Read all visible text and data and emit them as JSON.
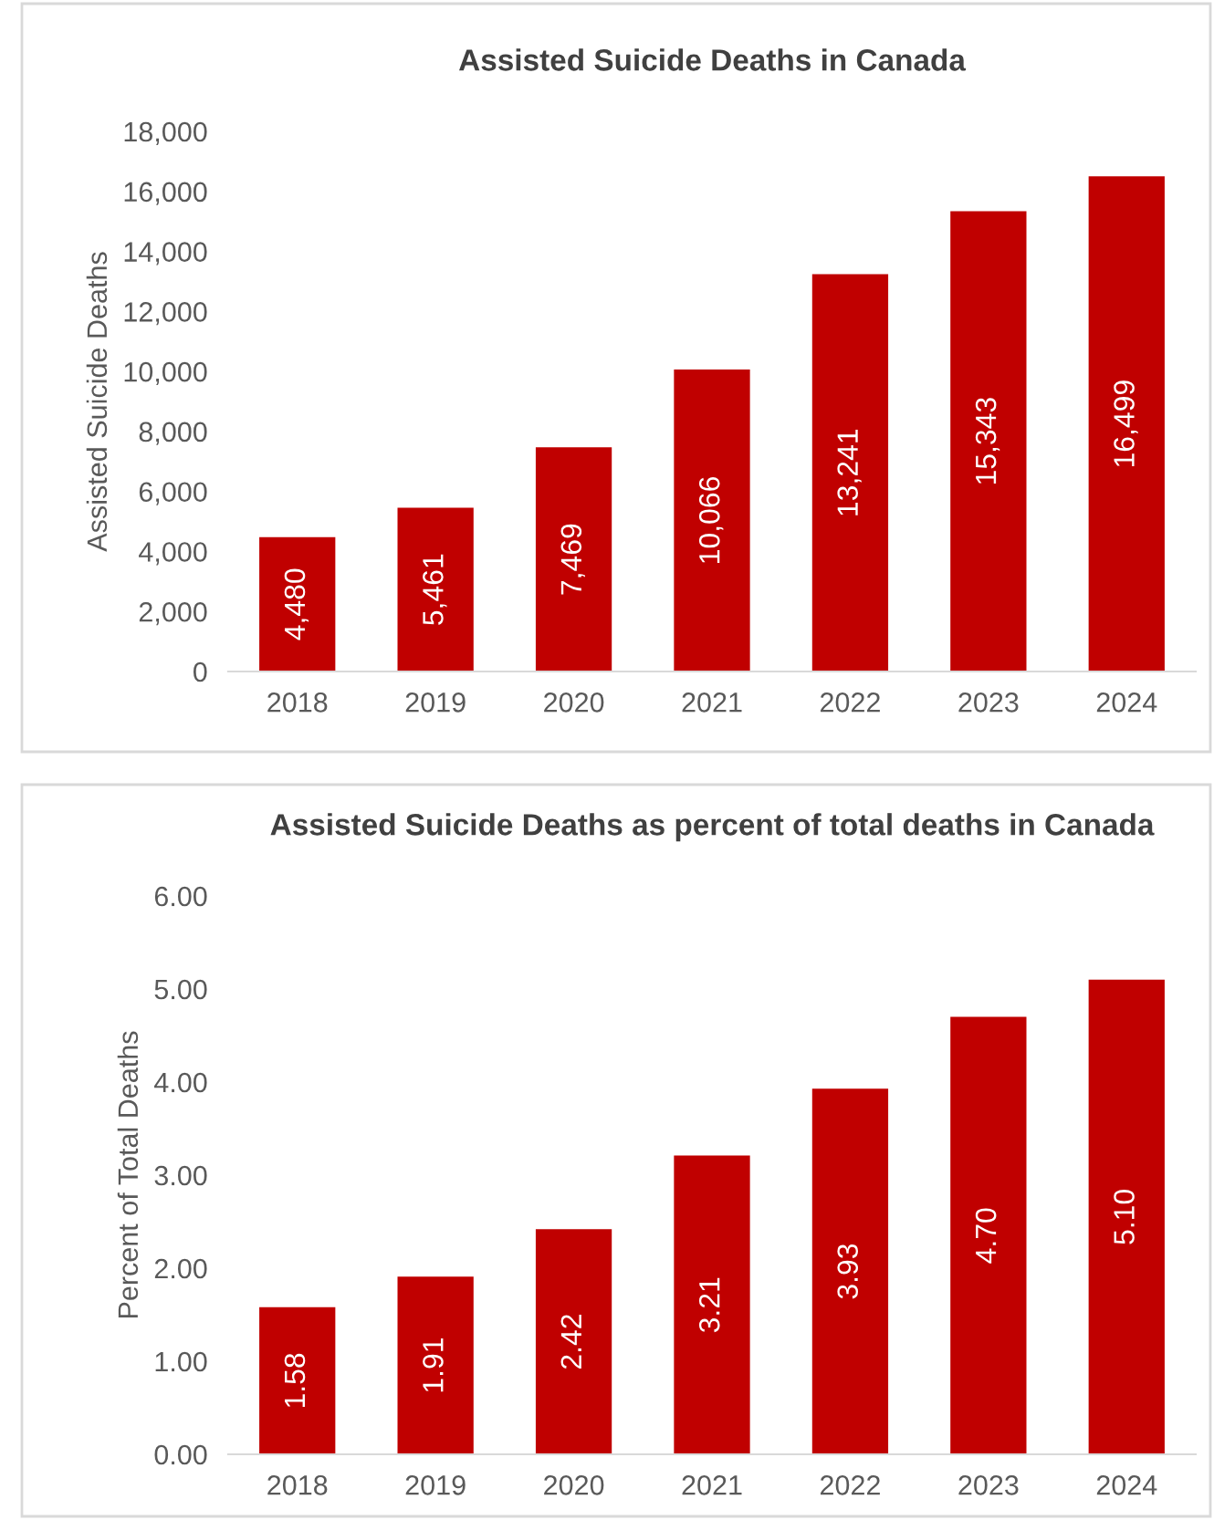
{
  "chart_data": [
    {
      "type": "bar",
      "title": "Assisted Suicide Deaths in Canada",
      "ylabel": "Assisted Suicide Deaths",
      "categories": [
        "2018",
        "2019",
        "2020",
        "2021",
        "2022",
        "2023",
        "2024"
      ],
      "values": [
        4480,
        5461,
        7469,
        10066,
        13241,
        15343,
        16499
      ],
      "value_labels": [
        "4,480",
        "5,461",
        "7,469",
        "10,066",
        "13,241",
        "15,343",
        "16,499"
      ],
      "color": "#c00000",
      "ylim": [
        0,
        18000
      ],
      "yticks": [
        0,
        {
          "value": 2000,
          "label": "2,000"
        },
        {
          "value": 4000,
          "label": "4,000"
        },
        {
          "value": 6000,
          "label": "6,000"
        },
        {
          "value": 8000,
          "label": "8,000"
        },
        {
          "value": 10000,
          "label": "10,000"
        },
        {
          "value": 12000,
          "label": "12,000"
        },
        {
          "value": 14000,
          "label": "14,000"
        },
        {
          "value": 16000,
          "label": "16,000"
        },
        {
          "value": 18000,
          "label": "18,000"
        }
      ],
      "grid": false,
      "legend": false
    },
    {
      "type": "bar",
      "title": "Assisted Suicide Deaths as percent of total deaths in Canada",
      "ylabel": "Percent of Total Deaths",
      "categories": [
        "2018",
        "2019",
        "2020",
        "2021",
        "2022",
        "2023",
        "2024"
      ],
      "values": [
        1.58,
        1.91,
        2.42,
        3.21,
        3.93,
        4.7,
        5.1
      ],
      "value_labels": [
        "1.58",
        "1.91",
        "2.42",
        "3.21",
        "3.93",
        "4.70",
        "5.10"
      ],
      "color": "#c00000",
      "ylim": [
        0,
        6
      ],
      "yticks": [
        {
          "value": 0,
          "label": "0.00"
        },
        {
          "value": 1,
          "label": "1.00"
        },
        {
          "value": 2,
          "label": "2.00"
        },
        {
          "value": 3,
          "label": "3.00"
        },
        {
          "value": 4,
          "label": "4.00"
        },
        {
          "value": 5,
          "label": "5.00"
        },
        {
          "value": 6,
          "label": "6.00"
        }
      ],
      "grid": false,
      "legend": false
    }
  ]
}
